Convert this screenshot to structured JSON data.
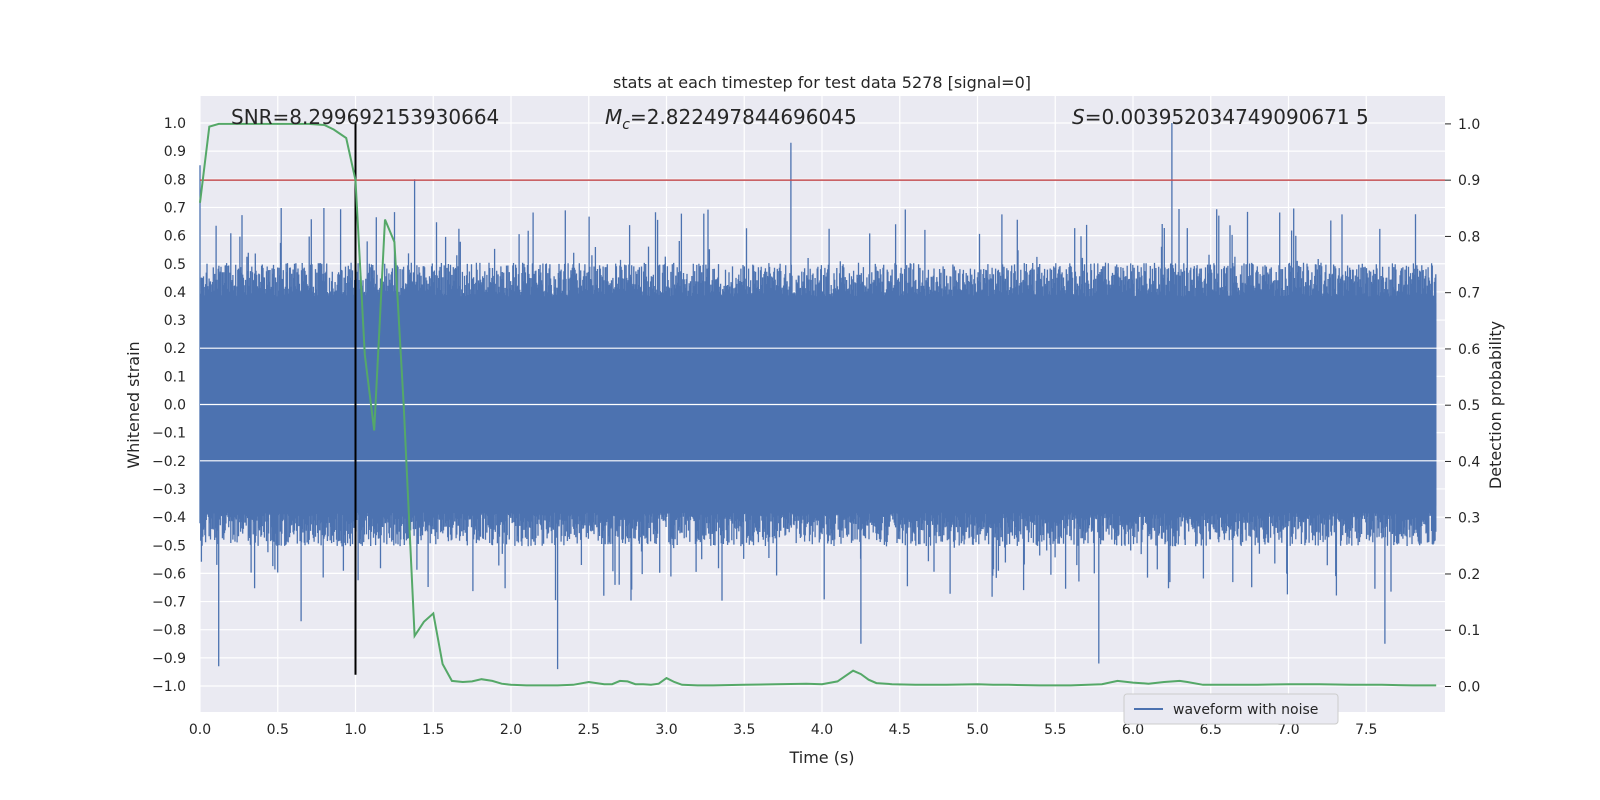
{
  "chart_data": {
    "type": "line",
    "title": "stats at each timestep for test data 5278 [signal=0]",
    "xlabel": "Time (s)",
    "ylabel": "Whitened strain",
    "y2label": "Detection probability",
    "xlim": [
      0.0,
      8.0
    ],
    "ylim": [
      -1.05,
      1.05
    ],
    "y2lim": [
      -0.05,
      1.05
    ],
    "x_ticks": [
      "0.0",
      "0.5",
      "1.0",
      "1.5",
      "2.0",
      "2.5",
      "3.0",
      "3.5",
      "4.0",
      "4.5",
      "5.0",
      "5.5",
      "6.0",
      "6.5",
      "7.0",
      "7.5"
    ],
    "y_ticks": [
      "1.0",
      "0.9",
      "0.8",
      "0.7",
      "0.6",
      "0.5",
      "0.4",
      "0.3",
      "0.2",
      "0.1",
      "0.0",
      "−0.1",
      "−0.2",
      "−0.3",
      "−0.4",
      "−0.5",
      "−0.6",
      "−0.7",
      "−0.8",
      "−0.9",
      "−1.0"
    ],
    "y2_ticks": [
      "1.0",
      "0.9",
      "0.8",
      "0.7",
      "0.6",
      "0.5",
      "0.4",
      "0.3",
      "0.2",
      "0.1",
      "0.0"
    ],
    "grid": true,
    "legend_position": "lower-right",
    "annotations": {
      "snr": "SNR=8.299692153930664",
      "mc_symbol": "M",
      "mc_sub": "c",
      "mc_value": "=2.822497844696045",
      "s_symbol": "S",
      "s_value": "=0.003952034749090671 5"
    },
    "threshold_y2": 0.9,
    "marker_x": 1.0,
    "series": [
      {
        "name": "waveform with noise",
        "axis": "left",
        "color": "#4c72b0",
        "description_peaks": [
          {
            "x": 0.0,
            "y": 0.85
          },
          {
            "x": 0.12,
            "y": -0.93
          },
          {
            "x": 0.65,
            "y": -0.77
          },
          {
            "x": 1.38,
            "y": 0.8
          },
          {
            "x": 2.3,
            "y": -0.94
          },
          {
            "x": 3.8,
            "y": 0.93
          },
          {
            "x": 4.25,
            "y": -0.85
          },
          {
            "x": 5.78,
            "y": -0.92
          },
          {
            "x": 6.25,
            "y": 1.0
          },
          {
            "x": 7.62,
            "y": -0.85
          }
        ],
        "band_amplitude": 0.42
      },
      {
        "name": "detection probability",
        "axis": "right",
        "color": "#55a868",
        "x": [
          0.0,
          0.06,
          0.12,
          0.2,
          0.3,
          0.4,
          0.5,
          0.6,
          0.7,
          0.8,
          0.86,
          0.94,
          1.0,
          1.06,
          1.12,
          1.19,
          1.25,
          1.31,
          1.38,
          1.44,
          1.5,
          1.56,
          1.62,
          1.69,
          1.75,
          1.81,
          1.88,
          1.94,
          2.0,
          2.1,
          2.2,
          2.3,
          2.4,
          2.5,
          2.6,
          2.65,
          2.7,
          2.75,
          2.8,
          2.85,
          2.9,
          2.95,
          3.0,
          3.05,
          3.1,
          3.2,
          3.3,
          3.5,
          3.7,
          3.9,
          4.0,
          4.1,
          4.2,
          4.25,
          4.3,
          4.35,
          4.45,
          4.6,
          4.8,
          5.0,
          5.1,
          5.2,
          5.4,
          5.6,
          5.8,
          5.9,
          6.0,
          6.1,
          6.2,
          6.3,
          6.35,
          6.45,
          6.6,
          6.8,
          7.0,
          7.2,
          7.4,
          7.6,
          7.8,
          7.95
        ],
        "y": [
          0.86,
          0.995,
          1.0,
          1.0,
          1.0,
          1.0,
          1.0,
          1.0,
          1.0,
          0.998,
          0.99,
          0.975,
          0.9,
          0.59,
          0.455,
          0.83,
          0.79,
          0.5,
          0.09,
          0.115,
          0.13,
          0.04,
          0.01,
          0.008,
          0.009,
          0.013,
          0.01,
          0.005,
          0.003,
          0.002,
          0.002,
          0.002,
          0.003,
          0.008,
          0.004,
          0.004,
          0.01,
          0.009,
          0.004,
          0.004,
          0.003,
          0.005,
          0.015,
          0.008,
          0.003,
          0.002,
          0.002,
          0.003,
          0.004,
          0.005,
          0.004,
          0.009,
          0.028,
          0.022,
          0.012,
          0.006,
          0.004,
          0.003,
          0.003,
          0.004,
          0.003,
          0.003,
          0.002,
          0.002,
          0.004,
          0.01,
          0.007,
          0.005,
          0.008,
          0.01,
          0.008,
          0.003,
          0.003,
          0.003,
          0.004,
          0.004,
          0.003,
          0.003,
          0.002,
          0.002
        ]
      }
    ]
  }
}
